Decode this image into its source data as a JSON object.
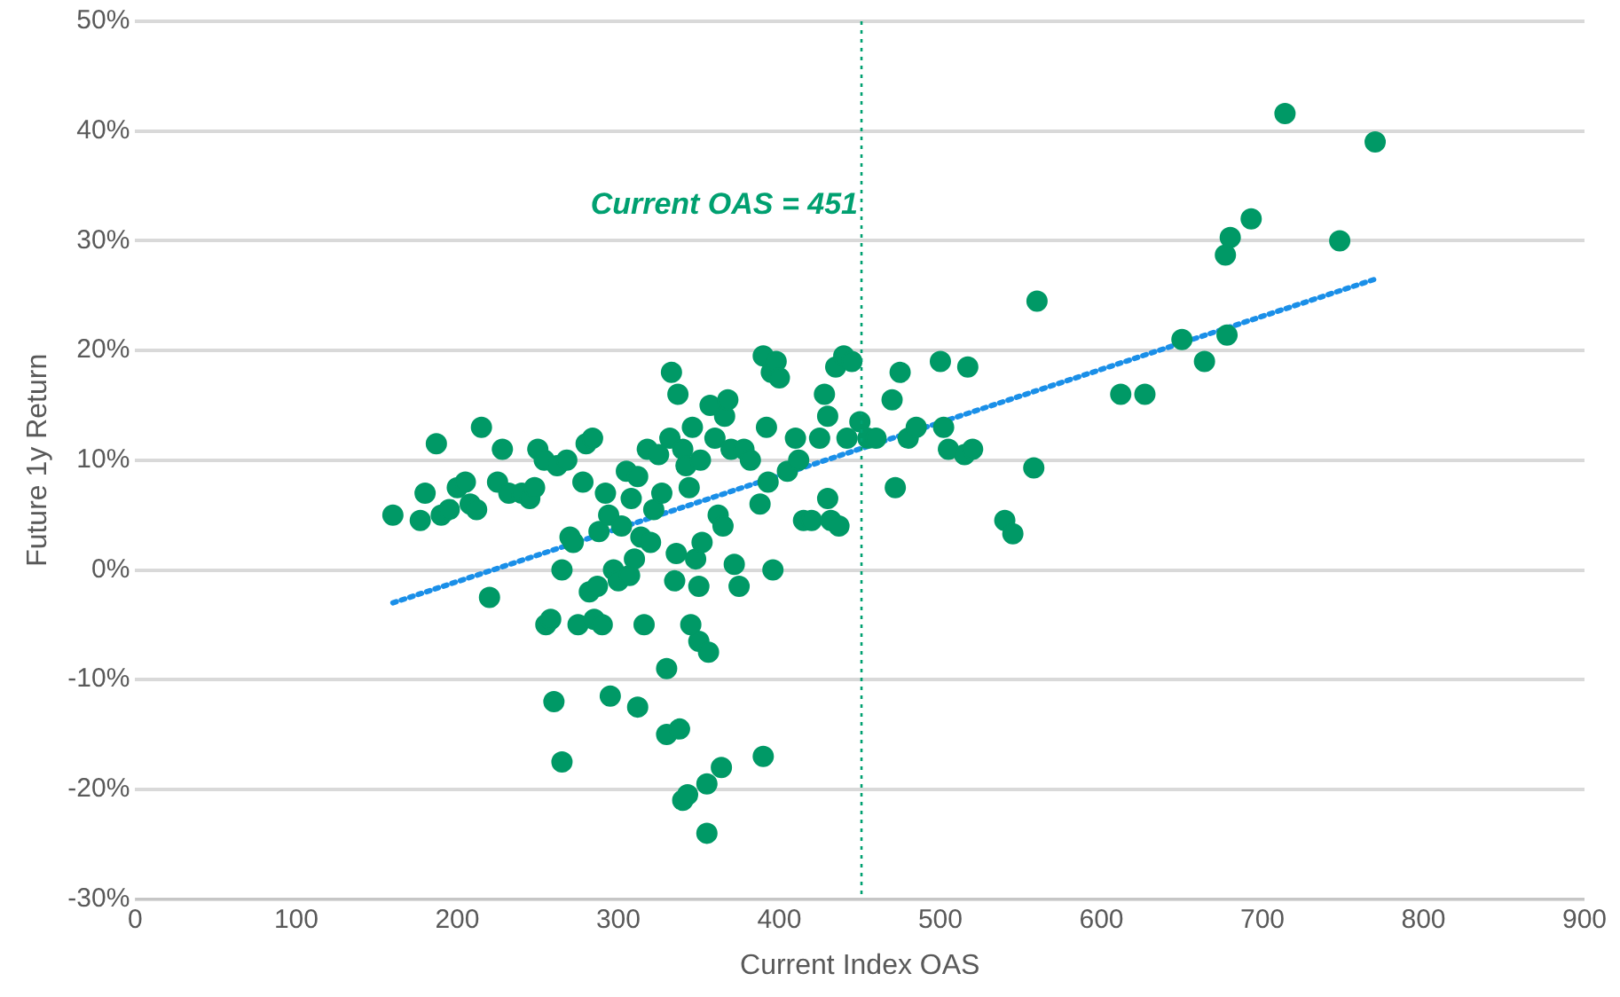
{
  "chart_data": {
    "type": "scatter",
    "xlabel": "Current Index OAS",
    "ylabel": "Future 1y Return",
    "xlim": [
      0,
      900
    ],
    "xticks": [
      0,
      100,
      200,
      300,
      400,
      500,
      600,
      700,
      800,
      900
    ],
    "ylim": [
      -30,
      50
    ],
    "yticks": [
      {
        "value": -30,
        "label": "-30%"
      },
      {
        "value": -20,
        "label": "-20%"
      },
      {
        "value": -10,
        "label": "-10%"
      },
      {
        "value": 0,
        "label": "0%"
      },
      {
        "value": 10,
        "label": "10%"
      },
      {
        "value": 20,
        "label": "20%"
      },
      {
        "value": 30,
        "label": "30%"
      },
      {
        "value": 40,
        "label": "40%"
      },
      {
        "value": 50,
        "label": "50%"
      }
    ],
    "grid": "y",
    "legend": false,
    "marker": "circle",
    "series": [
      {
        "color": "#009966",
        "x": [
          160,
          177,
          180,
          187,
          190,
          195,
          200,
          205,
          208,
          212,
          215,
          220,
          225,
          228,
          232,
          240,
          245,
          248,
          250,
          254,
          255,
          258,
          260,
          262,
          265,
          265,
          268,
          270,
          272,
          275,
          278,
          280,
          282,
          284,
          285,
          287,
          288,
          290,
          292,
          294,
          295,
          297,
          300,
          302,
          305,
          307,
          308,
          310,
          312,
          312,
          314,
          316,
          318,
          320,
          322,
          325,
          327,
          330,
          330,
          332,
          333,
          335,
          336,
          337,
          338,
          340,
          340,
          342,
          343,
          344,
          345,
          346,
          348,
          350,
          350,
          351,
          352,
          355,
          355,
          356,
          357,
          360,
          362,
          364,
          365,
          366,
          368,
          370,
          372,
          375,
          378,
          382,
          388,
          390,
          390,
          392,
          393,
          395,
          396,
          398,
          400,
          405,
          410,
          412,
          415,
          420,
          425,
          428,
          430,
          430,
          432,
          435,
          437,
          440,
          442,
          445,
          450,
          455,
          460,
          470,
          472,
          475,
          480,
          485,
          500,
          502,
          505,
          515,
          517,
          520,
          540,
          545,
          558,
          560,
          612,
          627,
          650,
          664,
          677,
          678,
          680,
          693,
          714,
          748,
          770
        ],
        "values": [
          5,
          4.5,
          7,
          11.5,
          5,
          5.5,
          7.5,
          8,
          6,
          5.5,
          13,
          -2.5,
          8,
          11,
          7,
          7,
          6.5,
          7.5,
          11,
          10,
          -5,
          -4.5,
          -12,
          9.5,
          -17.5,
          0,
          10,
          3,
          2.5,
          -5,
          8,
          11.5,
          -2,
          12,
          -4.5,
          -1.5,
          3.5,
          -5,
          7,
          5,
          -11.5,
          0,
          -1,
          4,
          9,
          -0.5,
          6.5,
          1,
          8.5,
          -12.5,
          3,
          -5,
          11,
          2.5,
          5.5,
          10.5,
          7,
          -9,
          -15,
          12,
          18,
          -1,
          1.5,
          16,
          -14.5,
          -21,
          11,
          9.5,
          -20.5,
          7.5,
          -5,
          13,
          1,
          -1.5,
          -6.5,
          10,
          2.5,
          -19.5,
          -24,
          -7.5,
          15,
          12,
          5,
          -18,
          4,
          14,
          15.5,
          11,
          0.5,
          -1.5,
          11,
          10,
          6,
          19.5,
          -17,
          13,
          8,
          18,
          0,
          19,
          17.5,
          9,
          12,
          10,
          4.5,
          4.5,
          12,
          16,
          14,
          6.5,
          4.5,
          18.5,
          4,
          19.5,
          12,
          19,
          13.5,
          12,
          12,
          15.5,
          7.5,
          18,
          12,
          13,
          19,
          13,
          11,
          10.5,
          18.5,
          11,
          4.5,
          3.3,
          9.3,
          24.5,
          16,
          16,
          21,
          19,
          28.7,
          21.4,
          30.3,
          32,
          41.6,
          30,
          39
        ]
      },
      {
        "type": "line",
        "color": "#1a8fe8",
        "marker": "none",
        "line_style": "dotted",
        "x": [
          160,
          770
        ],
        "values": [
          -3,
          26.5
        ]
      }
    ],
    "ref_lines": [
      {
        "axis": "x",
        "value": 451,
        "label": "Current OAS = 451",
        "color": "#00a070",
        "line_style": "dotted"
      }
    ]
  }
}
